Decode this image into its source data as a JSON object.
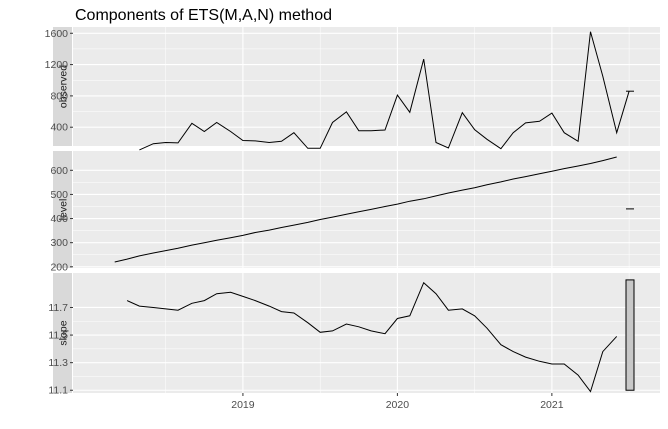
{
  "chart_data": {
    "type": "line",
    "title": "Components of ETS(M,A,N) method",
    "xlabel": "",
    "ylabel": "",
    "x_ticks": [
      "2019",
      "2020",
      "2021"
    ],
    "x_tick_values": [
      2019.0,
      2020.0,
      2021.0
    ],
    "xlim": [
      2017.9,
      2021.7
    ],
    "panels": [
      {
        "name": "observed",
        "ylim": [
          160,
          1680
        ],
        "y_ticks": [
          400,
          800,
          1200,
          1600
        ],
        "y_tick_labels": [
          "400",
          "800",
          "1200",
          "1600"
        ],
        "x": [
          2018.33,
          2018.42,
          2018.5,
          2018.58,
          2018.67,
          2018.75,
          2018.83,
          2018.92,
          2019.0,
          2019.08,
          2019.17,
          2019.25,
          2019.33,
          2019.42,
          2019.5,
          2019.58,
          2019.67,
          2019.75,
          2019.83,
          2019.92,
          2020.0,
          2020.08,
          2020.17,
          2020.25,
          2020.33,
          2020.42,
          2020.5,
          2020.58,
          2020.67,
          2020.75,
          2020.83,
          2020.92,
          2021.0,
          2021.08,
          2021.17,
          2021.25,
          2021.33,
          2021.42,
          2021.5
        ],
        "values": [
          110,
          190,
          205,
          200,
          450,
          345,
          460,
          345,
          230,
          225,
          205,
          220,
          330,
          130,
          130,
          460,
          595,
          355,
          355,
          365,
          810,
          590,
          1270,
          205,
          135,
          585,
          370,
          245,
          125,
          330,
          455,
          475,
          580,
          330,
          220,
          1620,
          1050,
          330,
          860
        ],
        "bar": {
          "value": 860
        }
      },
      {
        "name": "level",
        "ylim": [
          195,
          680
        ],
        "y_ticks": [
          200,
          300,
          400,
          500,
          600
        ],
        "y_tick_labels": [
          "200",
          "300",
          "400",
          "500",
          "600"
        ],
        "x": [
          2018.17,
          2018.25,
          2018.33,
          2018.42,
          2018.5,
          2018.58,
          2018.67,
          2018.75,
          2018.83,
          2018.92,
          2019.0,
          2019.08,
          2019.17,
          2019.25,
          2019.33,
          2019.42,
          2019.5,
          2019.58,
          2019.67,
          2019.75,
          2019.83,
          2019.92,
          2020.0,
          2020.08,
          2020.17,
          2020.25,
          2020.33,
          2020.42,
          2020.5,
          2020.58,
          2020.67,
          2020.75,
          2020.83,
          2020.92,
          2021.0,
          2021.08,
          2021.17,
          2021.25,
          2021.33,
          2021.42
        ],
        "values": [
          220,
          232,
          245,
          257,
          267,
          277,
          290,
          300,
          310,
          320,
          330,
          342,
          352,
          363,
          373,
          384,
          396,
          406,
          418,
          428,
          438,
          450,
          460,
          472,
          482,
          494,
          506,
          518,
          528,
          540,
          552,
          564,
          574,
          586,
          596,
          607,
          618,
          628,
          640,
          655
        ],
        "bar": {
          "value": 440
        }
      },
      {
        "name": "slope",
        "ylim": [
          11.08,
          11.95
        ],
        "y_ticks": [
          11.1,
          11.3,
          11.5,
          11.7
        ],
        "y_tick_labels": [
          "11.1",
          "11.3",
          "11.5",
          "11.7"
        ],
        "x": [
          2018.25,
          2018.33,
          2018.42,
          2018.5,
          2018.58,
          2018.67,
          2018.75,
          2018.83,
          2018.92,
          2019.0,
          2019.08,
          2019.17,
          2019.25,
          2019.33,
          2019.42,
          2019.5,
          2019.58,
          2019.67,
          2019.75,
          2019.83,
          2019.92,
          2020.0,
          2020.08,
          2020.17,
          2020.25,
          2020.33,
          2020.42,
          2020.5,
          2020.58,
          2020.67,
          2020.75,
          2020.83,
          2020.92,
          2021.0,
          2021.08,
          2021.17,
          2021.25,
          2021.33,
          2021.42
        ],
        "values": [
          11.75,
          11.71,
          11.7,
          11.69,
          11.68,
          11.73,
          11.75,
          11.8,
          11.81,
          11.78,
          11.75,
          11.71,
          11.67,
          11.66,
          11.59,
          11.52,
          11.53,
          11.58,
          11.56,
          11.53,
          11.51,
          11.62,
          11.64,
          11.88,
          11.8,
          11.68,
          11.69,
          11.64,
          11.55,
          11.43,
          11.38,
          11.34,
          11.31,
          11.29,
          11.29,
          11.21,
          11.09,
          11.38,
          11.49
        ],
        "bar": {
          "low": 11.1,
          "high": 11.9
        }
      }
    ],
    "colors": {
      "panel_bg": "#ebebeb",
      "grid": "#ffffff",
      "strip_bg": "#d9d9d9",
      "line": "#000000",
      "bar_fill": "#c8c8c8"
    },
    "grid": true,
    "legend": "none"
  }
}
